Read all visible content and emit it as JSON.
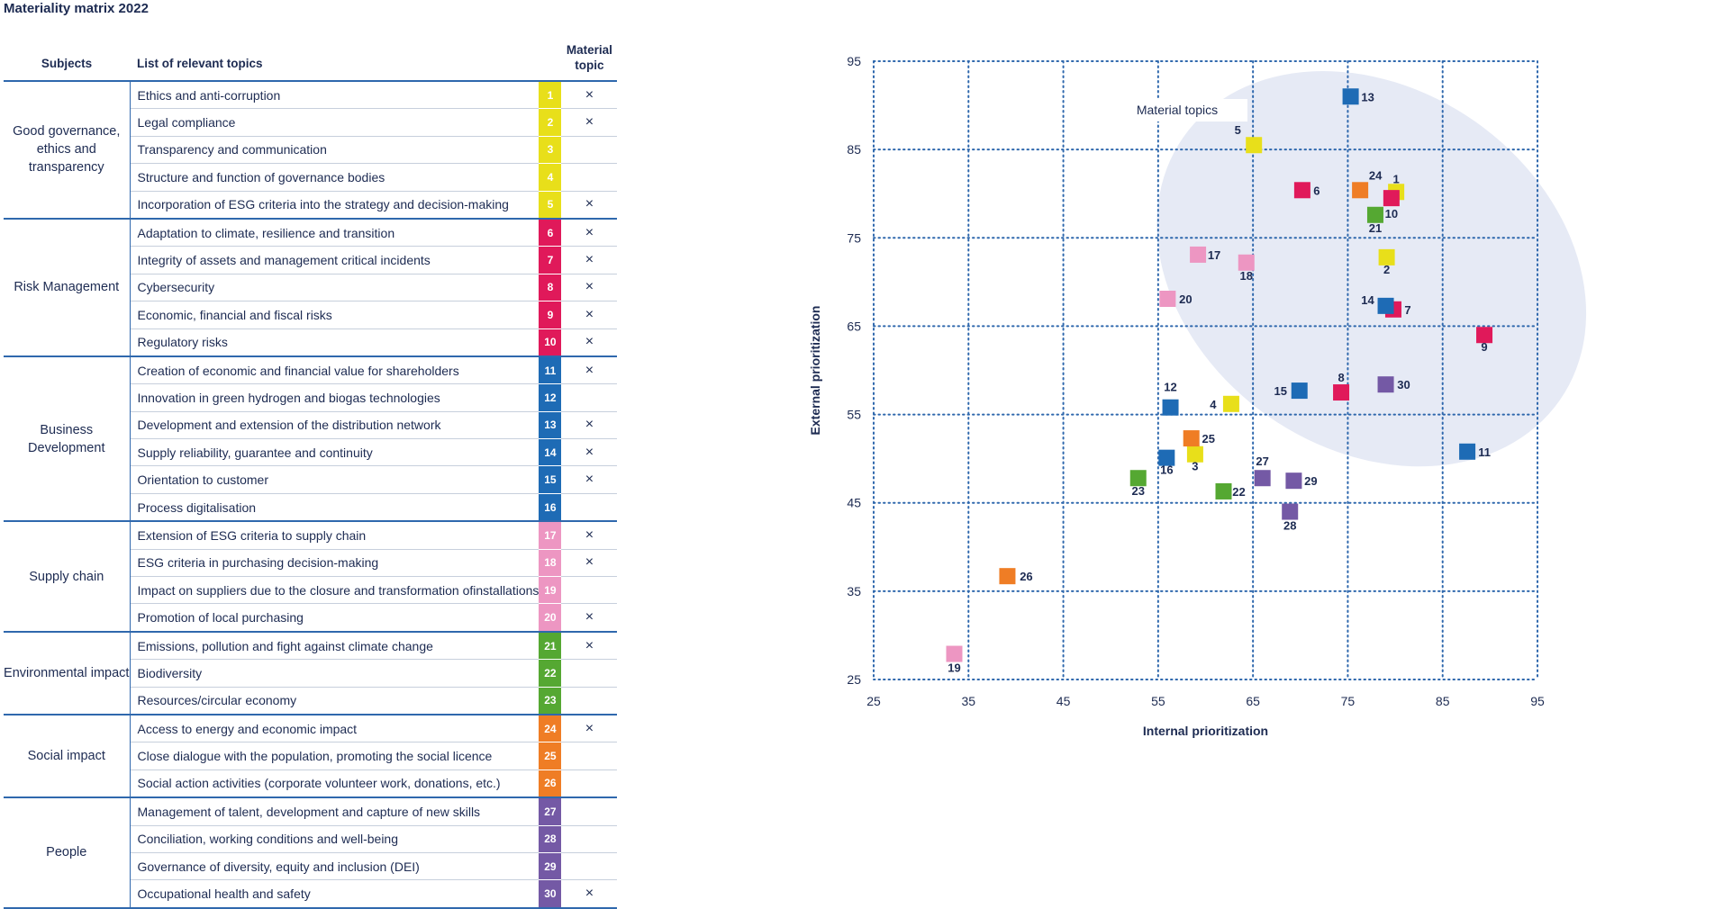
{
  "title": "Materiality matrix 2022",
  "table": {
    "headers": {
      "subjects": "Subjects",
      "topics": "List of relevant topics",
      "material": "Material topic"
    },
    "groups": [
      {
        "subject": "Good governance, ethics and transparency",
        "color": "#e8df1a",
        "items": [
          {
            "n": "1",
            "topic": "Ethics and anti-corruption",
            "material": "×"
          },
          {
            "n": "2",
            "topic": "Legal compliance",
            "material": "×"
          },
          {
            "n": "3",
            "topic": "Transparency and communication",
            "material": ""
          },
          {
            "n": "4",
            "topic": "Structure and function of governance bodies",
            "material": ""
          },
          {
            "n": "5",
            "topic": "Incorporation of ESG criteria into the strategy and decision-making",
            "material": "×"
          }
        ]
      },
      {
        "subject": "Risk Management",
        "color": "#e0195a",
        "items": [
          {
            "n": "6",
            "topic": "Adaptation to climate, resilience and transition",
            "material": "×"
          },
          {
            "n": "7",
            "topic": "Integrity of assets and management critical incidents",
            "material": "×"
          },
          {
            "n": "8",
            "topic": "Cybersecurity",
            "material": "×"
          },
          {
            "n": "9",
            "topic": "Economic, financial and fiscal risks",
            "material": "×"
          },
          {
            "n": "10",
            "topic": "Regulatory risks",
            "material": "×"
          }
        ]
      },
      {
        "subject": "Business Development",
        "color": "#1e6bb5",
        "items": [
          {
            "n": "11",
            "topic": "Creation of economic and financial value for shareholders",
            "material": "×"
          },
          {
            "n": "12",
            "topic": "Innovation in green hydrogen and biogas technologies",
            "material": ""
          },
          {
            "n": "13",
            "topic": "Development and extension of the distribution network",
            "material": "×"
          },
          {
            "n": "14",
            "topic": "Supply reliability, guarantee and continuity",
            "material": "×"
          },
          {
            "n": "15",
            "topic": "Orientation to customer",
            "material": "×"
          },
          {
            "n": "16",
            "topic": "Process digitalisation",
            "material": ""
          }
        ]
      },
      {
        "subject": "Supply chain",
        "color": "#ed96c2",
        "items": [
          {
            "n": "17",
            "topic": "Extension of ESG criteria to supply chain",
            "material": "×"
          },
          {
            "n": "18",
            "topic": "ESG criteria in purchasing decision-making",
            "material": "×"
          },
          {
            "n": "19",
            "topic": "Impact on suppliers due to the closure and transformation ofinstallations",
            "material": ""
          },
          {
            "n": "20",
            "topic": "Promotion of local purchasing",
            "material": "×"
          }
        ]
      },
      {
        "subject": "Environmental impact",
        "color": "#55a832",
        "items": [
          {
            "n": "21",
            "topic": "Emissions, pollution and fight against climate change",
            "material": "×"
          },
          {
            "n": "22",
            "topic": "Biodiversity",
            "material": ""
          },
          {
            "n": "23",
            "topic": "Resources/circular economy",
            "material": ""
          }
        ]
      },
      {
        "subject": "Social impact",
        "color": "#ef7d25",
        "items": [
          {
            "n": "24",
            "topic": "Access to energy and economic impact",
            "material": "×"
          },
          {
            "n": "25",
            "topic": "Close dialogue with the population, promoting the social licence",
            "material": ""
          },
          {
            "n": "26",
            "topic": "Social action activities (corporate volunteer work, donations, etc.)",
            "material": ""
          }
        ]
      },
      {
        "subject": "People",
        "color": "#7459a5",
        "items": [
          {
            "n": "27",
            "topic": "Management of talent, development and capture of new skills",
            "material": ""
          },
          {
            "n": "28",
            "topic": "Conciliation, working conditions and well-being",
            "material": ""
          },
          {
            "n": "29",
            "topic": "Governance of diversity, equity and inclusion (DEI)",
            "material": ""
          },
          {
            "n": "30",
            "topic": "Occupational health and safety",
            "material": "×"
          }
        ]
      }
    ]
  },
  "chart_data": {
    "type": "scatter",
    "xlabel": "Internal prioritization",
    "ylabel": "External prioritization",
    "xlim": [
      25,
      95
    ],
    "ylim": [
      25,
      95
    ],
    "xticks": [
      "25",
      "35",
      "45",
      "55",
      "65",
      "75",
      "85",
      "95"
    ],
    "yticks": [
      "25",
      "35",
      "45",
      "55",
      "65",
      "75",
      "85",
      "95"
    ],
    "grid": true,
    "annotation": "Material topics",
    "colors": {
      "governance": "#e8df1a",
      "risk": "#e0195a",
      "business": "#1e6bb5",
      "supply": "#ed96c2",
      "environment": "#55a832",
      "social": "#ef7d25",
      "people": "#7459a5",
      "ellipse": "#e6eaf5",
      "grid": "#2f68ad"
    },
    "points": [
      {
        "label": "1",
        "x": 80.1,
        "y": 80.2,
        "group": "governance"
      },
      {
        "label": "2",
        "x": 79.1,
        "y": 72.8,
        "group": "governance"
      },
      {
        "label": "3",
        "x": 58.9,
        "y": 50.5,
        "group": "governance"
      },
      {
        "label": "4",
        "x": 62.7,
        "y": 56.2,
        "group": "governance"
      },
      {
        "label": "5",
        "x": 65.1,
        "y": 85.5,
        "group": "governance"
      },
      {
        "label": "6",
        "x": 70.2,
        "y": 80.4,
        "group": "risk"
      },
      {
        "label": "7",
        "x": 79.8,
        "y": 66.9,
        "group": "risk"
      },
      {
        "label": "8",
        "x": 74.3,
        "y": 57.5,
        "group": "risk"
      },
      {
        "label": "9",
        "x": 89.4,
        "y": 64.0,
        "group": "risk"
      },
      {
        "label": "10",
        "x": 79.6,
        "y": 79.5,
        "group": "risk"
      },
      {
        "label": "11",
        "x": 87.6,
        "y": 50.8,
        "group": "business"
      },
      {
        "label": "12",
        "x": 56.3,
        "y": 55.8,
        "group": "business"
      },
      {
        "label": "13",
        "x": 75.3,
        "y": 91.0,
        "group": "business"
      },
      {
        "label": "14",
        "x": 79.0,
        "y": 67.3,
        "group": "business"
      },
      {
        "label": "15",
        "x": 69.9,
        "y": 57.7,
        "group": "business"
      },
      {
        "label": "16",
        "x": 55.9,
        "y": 50.1,
        "group": "business"
      },
      {
        "label": "17",
        "x": 59.2,
        "y": 73.1,
        "group": "supply"
      },
      {
        "label": "18",
        "x": 64.3,
        "y": 72.2,
        "group": "supply"
      },
      {
        "label": "19",
        "x": 33.5,
        "y": 27.9,
        "group": "supply"
      },
      {
        "label": "20",
        "x": 56.0,
        "y": 68.1,
        "group": "supply"
      },
      {
        "label": "21",
        "x": 77.9,
        "y": 77.6,
        "group": "environment"
      },
      {
        "label": "22",
        "x": 61.9,
        "y": 46.3,
        "group": "environment"
      },
      {
        "label": "23",
        "x": 52.9,
        "y": 47.8,
        "group": "environment"
      },
      {
        "label": "24",
        "x": 76.3,
        "y": 80.4,
        "group": "social"
      },
      {
        "label": "25",
        "x": 58.5,
        "y": 52.3,
        "group": "social"
      },
      {
        "label": "26",
        "x": 39.1,
        "y": 36.7,
        "group": "social"
      },
      {
        "label": "27",
        "x": 66.0,
        "y": 47.8,
        "group": "people"
      },
      {
        "label": "28",
        "x": 68.9,
        "y": 44.0,
        "group": "people"
      },
      {
        "label": "29",
        "x": 69.3,
        "y": 47.5,
        "group": "people"
      },
      {
        "label": "30",
        "x": 79.0,
        "y": 58.4,
        "group": "people"
      }
    ]
  }
}
